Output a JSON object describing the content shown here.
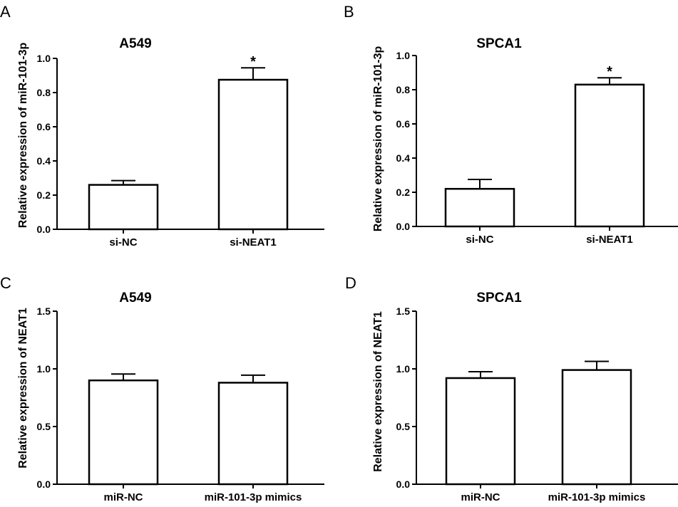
{
  "chart_data": [
    {
      "panel": "A",
      "type": "bar",
      "title": "A549",
      "ylabel": "Relative expression of miR-101-3p",
      "ylim": [
        0,
        1.0
      ],
      "yticks": [
        "0.0",
        "0.2",
        "0.4",
        "0.6",
        "0.8",
        "1.0"
      ],
      "categories": [
        "si-NC",
        "si-NEAT1"
      ],
      "values": [
        0.26,
        0.875
      ],
      "errors": [
        0.025,
        0.07
      ],
      "annotations": [
        "",
        "*"
      ]
    },
    {
      "panel": "B",
      "type": "bar",
      "title": "SPCA1",
      "ylabel": "Relative expression of miR-101-3p",
      "ylim": [
        0,
        1.0
      ],
      "yticks": [
        "0.0",
        "0.2",
        "0.4",
        "0.6",
        "0.8",
        "1.0"
      ],
      "categories": [
        "si-NC",
        "si-NEAT1"
      ],
      "values": [
        0.22,
        0.83
      ],
      "errors": [
        0.055,
        0.04
      ],
      "annotations": [
        "",
        "*"
      ]
    },
    {
      "panel": "C",
      "type": "bar",
      "title": "A549",
      "ylabel": "Relative expression of NEAT1",
      "ylim": [
        0,
        1.5
      ],
      "yticks": [
        "0.0",
        "0.5",
        "1.0",
        "1.5"
      ],
      "categories": [
        "miR-NC",
        "miR-101-3p mimics"
      ],
      "values": [
        0.9,
        0.88
      ],
      "errors": [
        0.055,
        0.065
      ],
      "annotations": [
        "",
        ""
      ]
    },
    {
      "panel": "D",
      "type": "bar",
      "title": "SPCA1",
      "ylabel": "Relative expression of NEAT1",
      "ylim": [
        0,
        1.5
      ],
      "yticks": [
        "0.0",
        "0.5",
        "1.0",
        "1.5"
      ],
      "categories": [
        "miR-NC",
        "miR-101-3p mimics"
      ],
      "values": [
        0.92,
        0.99
      ],
      "errors": [
        0.055,
        0.075
      ],
      "annotations": [
        "",
        ""
      ]
    }
  ]
}
